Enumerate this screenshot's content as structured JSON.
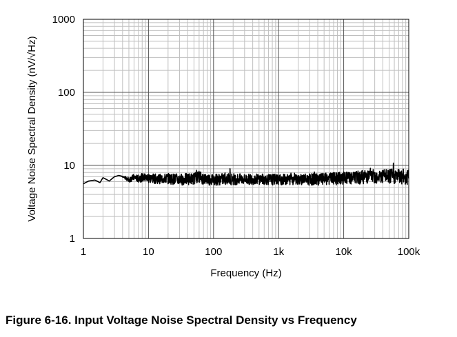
{
  "figure": {
    "caption": "Figure 6-16. Input Voltage Noise Spectral Density vs Frequency"
  },
  "chart_data": {
    "type": "line",
    "xlabel": "Frequency (Hz)",
    "ylabel": "Voltage Noise Spectral Density (nV/√Hz)",
    "xscale": "log",
    "yscale": "log",
    "xlim": [
      1,
      100000
    ],
    "ylim": [
      1,
      1000
    ],
    "grid": true,
    "x_ticks": [
      {
        "value": 1,
        "label": "1"
      },
      {
        "value": 10,
        "label": "10"
      },
      {
        "value": 100,
        "label": "100"
      },
      {
        "value": 1000,
        "label": "1k"
      },
      {
        "value": 10000,
        "label": "10k"
      },
      {
        "value": 100000,
        "label": "100k"
      }
    ],
    "y_ticks": [
      {
        "value": 1,
        "label": "1"
      },
      {
        "value": 10,
        "label": "10"
      },
      {
        "value": 100,
        "label": "100"
      },
      {
        "value": 1000,
        "label": "1000"
      }
    ],
    "series": [
      {
        "color": "#000000",
        "x": [
          1,
          1.2,
          1.5,
          1.8,
          2,
          2.5,
          3,
          3.5,
          4,
          5,
          6,
          7,
          8,
          10,
          15,
          20,
          30,
          50,
          60,
          70,
          100,
          150,
          200,
          300,
          500,
          700,
          1000,
          1500,
          2000,
          3000,
          5000,
          7000,
          10000,
          15000,
          20000,
          30000,
          50000,
          70000,
          100000
        ],
        "y": [
          5.6,
          6.1,
          6.3,
          5.8,
          6.8,
          6.1,
          7.0,
          7.3,
          7.0,
          6.4,
          6.9,
          6.6,
          6.9,
          6.7,
          6.6,
          6.7,
          6.5,
          6.7,
          7.2,
          6.6,
          6.5,
          6.6,
          6.6,
          6.5,
          6.6,
          6.5,
          6.5,
          6.5,
          6.6,
          6.5,
          6.6,
          6.7,
          6.8,
          6.9,
          7.1,
          7.2,
          7.2,
          7.3,
          7.0
        ],
        "noise": [
          0,
          0,
          0,
          0,
          0,
          0,
          0,
          0,
          0.1,
          0.6,
          0.7,
          0.8,
          0.9,
          1.0,
          1.0,
          1.1,
          1.2,
          1.2,
          1.3,
          1.2,
          1.2,
          1.2,
          1.2,
          1.1,
          1.1,
          1.1,
          1.1,
          1.1,
          1.1,
          1.2,
          1.2,
          1.3,
          1.4,
          1.4,
          1.5,
          1.6,
          1.7,
          1.8,
          1.8
        ]
      }
    ]
  }
}
